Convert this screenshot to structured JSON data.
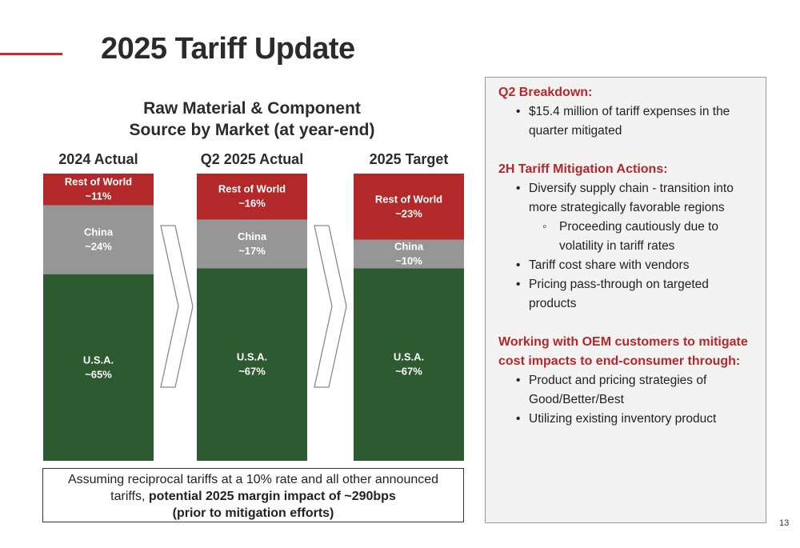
{
  "title": "2025 Tariff Update",
  "page_number": "13",
  "chart_data": {
    "type": "bar",
    "stacked": true,
    "title_lines": [
      "Raw Material & Component",
      "Source by Market (at year-end)"
    ],
    "categories": [
      "2024 Actual",
      "Q2 2025 Actual",
      "2025 Target"
    ],
    "series": [
      {
        "name": "U.S.A.",
        "color": "#2e5a32",
        "values": [
          65,
          67,
          67
        ],
        "labels": [
          "U.S.A.\n~65%",
          "U.S.A.\n~67%",
          "U.S.A.\n~67%"
        ]
      },
      {
        "name": "China",
        "color": "#969696",
        "values": [
          24,
          17,
          10
        ],
        "labels": [
          "China\n~24%",
          "China\n~17%",
          "China\n~10%"
        ]
      },
      {
        "name": "Rest of World",
        "color": "#b3292a",
        "values": [
          11,
          16,
          23
        ],
        "labels": [
          "Rest of World\n~11%",
          "Rest of World\n~16%",
          "Rest of World\n~23%"
        ]
      }
    ],
    "ylim": [
      0,
      100
    ]
  },
  "note": {
    "line1": "Assuming reciprocal tariffs at a 10% rate and all other announced",
    "line2_plain": "tariffs, ",
    "line2_bold": "potential 2025 margin impact of ~290bps",
    "line3_bold": "(prior to mitigation efforts)"
  },
  "panel": {
    "q2_heading": "Q2 Breakdown:",
    "q2_bullets": [
      "$15.4 million of tariff expenses in the quarter mitigated"
    ],
    "h2_heading": "2H Tariff Mitigation Actions:",
    "h2_bullet1": "Diversify supply chain - transition into more strategically favorable regions",
    "h2_sub1": "Proceeding cautiously due to volatility in tariff rates",
    "h2_bullet2": "Tariff cost share with vendors",
    "h2_bullet3": "Pricing pass-through on targeted products",
    "oem_heading": "Working with OEM customers to mitigate cost impacts to end-consumer through:",
    "oem_bullets": [
      "Product and pricing strategies of Good/Better/Best",
      "Utilizing existing inventory product"
    ]
  }
}
